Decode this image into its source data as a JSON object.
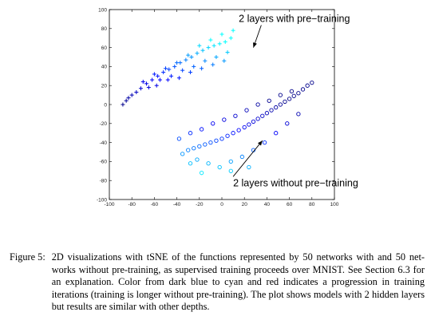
{
  "chart_data": {
    "type": "scatter",
    "title": "",
    "xlabel": "",
    "ylabel": "",
    "xlim": [
      -100,
      100
    ],
    "ylim": [
      -100,
      100
    ],
    "xticks": [
      -100,
      -80,
      -60,
      -40,
      -20,
      0,
      20,
      40,
      60,
      80,
      100
    ],
    "yticks": [
      100,
      80,
      60,
      40,
      20,
      0,
      -20,
      -40,
      -60,
      -80,
      -100
    ],
    "grid": false,
    "color_scale": [
      "#00008b",
      "#0000ff",
      "#00ffff",
      "#ff0000"
    ],
    "series": [
      {
        "marker": "+",
        "points": [
          {
            "x": -88,
            "y": 0
          },
          {
            "x": -85,
            "y": 4
          },
          {
            "x": -83,
            "y": 7
          },
          {
            "x": -80,
            "y": 10
          },
          {
            "x": -76,
            "y": 13
          },
          {
            "x": -72,
            "y": 17
          },
          {
            "x": -67,
            "y": 22
          },
          {
            "x": -62,
            "y": 26
          },
          {
            "x": -57,
            "y": 30
          },
          {
            "x": -52,
            "y": 34
          },
          {
            "x": -47,
            "y": 37
          },
          {
            "x": -42,
            "y": 40
          },
          {
            "x": -37,
            "y": 44
          },
          {
            "x": -32,
            "y": 47
          },
          {
            "x": -27,
            "y": 50
          },
          {
            "x": -22,
            "y": 54
          },
          {
            "x": -17,
            "y": 57
          },
          {
            "x": -12,
            "y": 60
          },
          {
            "x": -7,
            "y": 62
          },
          {
            "x": -2,
            "y": 64
          },
          {
            "x": 3,
            "y": 66
          },
          {
            "x": 8,
            "y": 70
          },
          {
            "x": -55,
            "y": 26
          },
          {
            "x": -45,
            "y": 30
          },
          {
            "x": -35,
            "y": 36
          },
          {
            "x": -25,
            "y": 40
          },
          {
            "x": -15,
            "y": 46
          },
          {
            "x": -5,
            "y": 50
          },
          {
            "x": 5,
            "y": 55
          },
          {
            "x": -60,
            "y": 32
          },
          {
            "x": -50,
            "y": 38
          },
          {
            "x": -40,
            "y": 44
          },
          {
            "x": -30,
            "y": 52
          },
          {
            "x": -20,
            "y": 62
          },
          {
            "x": -10,
            "y": 68
          },
          {
            "x": 0,
            "y": 74
          },
          {
            "x": 10,
            "y": 78
          },
          {
            "x": -70,
            "y": 24
          },
          {
            "x": -65,
            "y": 18
          },
          {
            "x": -58,
            "y": 20
          },
          {
            "x": -48,
            "y": 26
          },
          {
            "x": -38,
            "y": 28
          },
          {
            "x": -28,
            "y": 34
          },
          {
            "x": -18,
            "y": 38
          },
          {
            "x": -8,
            "y": 42
          },
          {
            "x": 2,
            "y": 46
          }
        ]
      },
      {
        "marker": "o",
        "points": [
          {
            "x": 80,
            "y": 23
          },
          {
            "x": 76,
            "y": 20
          },
          {
            "x": 72,
            "y": 16
          },
          {
            "x": 68,
            "y": 12
          },
          {
            "x": 64,
            "y": 9
          },
          {
            "x": 60,
            "y": 6
          },
          {
            "x": 56,
            "y": 3
          },
          {
            "x": 52,
            "y": 0
          },
          {
            "x": 48,
            "y": -3
          },
          {
            "x": 44,
            "y": -6
          },
          {
            "x": 40,
            "y": -9
          },
          {
            "x": 36,
            "y": -12
          },
          {
            "x": 32,
            "y": -15
          },
          {
            "x": 28,
            "y": -18
          },
          {
            "x": 24,
            "y": -21
          },
          {
            "x": 20,
            "y": -24
          },
          {
            "x": 15,
            "y": -27
          },
          {
            "x": 10,
            "y": -30
          },
          {
            "x": 5,
            "y": -33
          },
          {
            "x": 0,
            "y": -36
          },
          {
            "x": -5,
            "y": -38
          },
          {
            "x": -10,
            "y": -40
          },
          {
            "x": -15,
            "y": -42
          },
          {
            "x": -20,
            "y": -44
          },
          {
            "x": -25,
            "y": -46
          },
          {
            "x": -30,
            "y": -48
          },
          {
            "x": -35,
            "y": -52
          },
          {
            "x": -22,
            "y": -58
          },
          {
            "x": -12,
            "y": -62
          },
          {
            "x": -2,
            "y": -66
          },
          {
            "x": 8,
            "y": -60
          },
          {
            "x": 18,
            "y": -55
          },
          {
            "x": 28,
            "y": -48
          },
          {
            "x": 38,
            "y": -40
          },
          {
            "x": 48,
            "y": -30
          },
          {
            "x": 58,
            "y": -20
          },
          {
            "x": 68,
            "y": -10
          },
          {
            "x": 62,
            "y": 14
          },
          {
            "x": 52,
            "y": 10
          },
          {
            "x": 42,
            "y": 4
          },
          {
            "x": 32,
            "y": 0
          },
          {
            "x": 22,
            "y": -6
          },
          {
            "x": 12,
            "y": -12
          },
          {
            "x": 2,
            "y": -16
          },
          {
            "x": -8,
            "y": -20
          },
          {
            "x": -18,
            "y": -26
          },
          {
            "x": -28,
            "y": -30
          },
          {
            "x": -38,
            "y": -36
          },
          {
            "x": -28,
            "y": -62
          },
          {
            "x": -18,
            "y": -72
          },
          {
            "x": 8,
            "y": -70
          },
          {
            "x": 24,
            "y": -66
          }
        ]
      }
    ],
    "annotations": [
      {
        "text": "2 layers with pre−training",
        "x_text": 15,
        "y_text": 87,
        "x_arrow": 28,
        "y_arrow": 60
      },
      {
        "text": "2 layers without pre−training",
        "x_text": 10,
        "y_text": -86,
        "x_arrow": 36,
        "y_arrow": -38
      }
    ]
  },
  "caption": {
    "label": "Figure 5:",
    "text": "2D visualizations with tSNE of the functions represented by 50 networks with and 50 net-works without pre-training, as supervised training proceeds over MNIST. See Section 6.3 for an explanation. Color from dark blue to cyan and red indicates a progression in training iterations (training is longer without pre-training). The plot shows models with 2 hidden layers but results are similar with other depths."
  }
}
